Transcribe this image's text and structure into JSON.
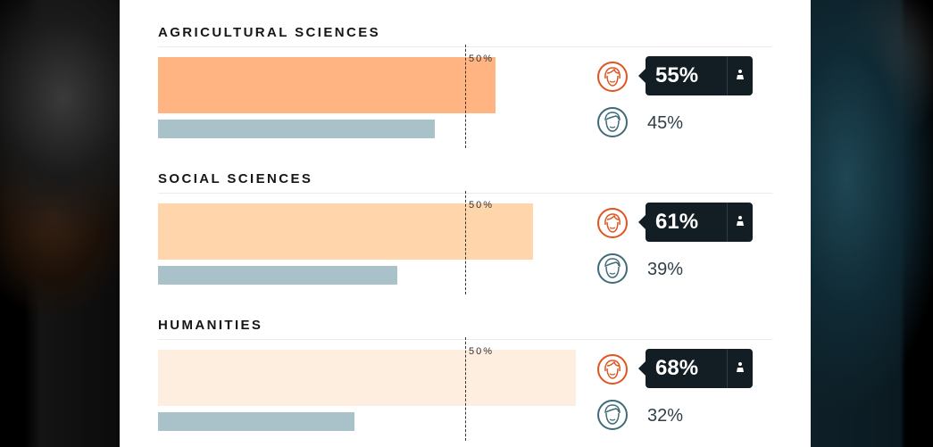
{
  "chart_data": {
    "type": "bar",
    "reference_line": {
      "value": 50,
      "label": "50%"
    },
    "groups": [
      {
        "title": "AGRICULTURAL SCIENCES",
        "female": 55,
        "male": 45,
        "female_label": "55%",
        "male_label": "45%",
        "female_color": "#ffb482"
      },
      {
        "title": "SOCIAL SCIENCES",
        "female": 61,
        "male": 39,
        "female_label": "61%",
        "male_label": "39%",
        "female_color": "#ffd6ac"
      },
      {
        "title": "HUMANITIES",
        "female": 68,
        "male": 32,
        "female_label": "68%",
        "male_label": "32%",
        "female_color": "#fdeedf"
      }
    ]
  },
  "colors": {
    "male_bar": "#a9c1c8",
    "female_icon": "#e0541f",
    "male_icon": "#3f6b78",
    "callout_bg": "#121d24"
  },
  "icons": {
    "female": "female-face-icon",
    "male": "male-face-icon",
    "callout": "person-icon"
  }
}
